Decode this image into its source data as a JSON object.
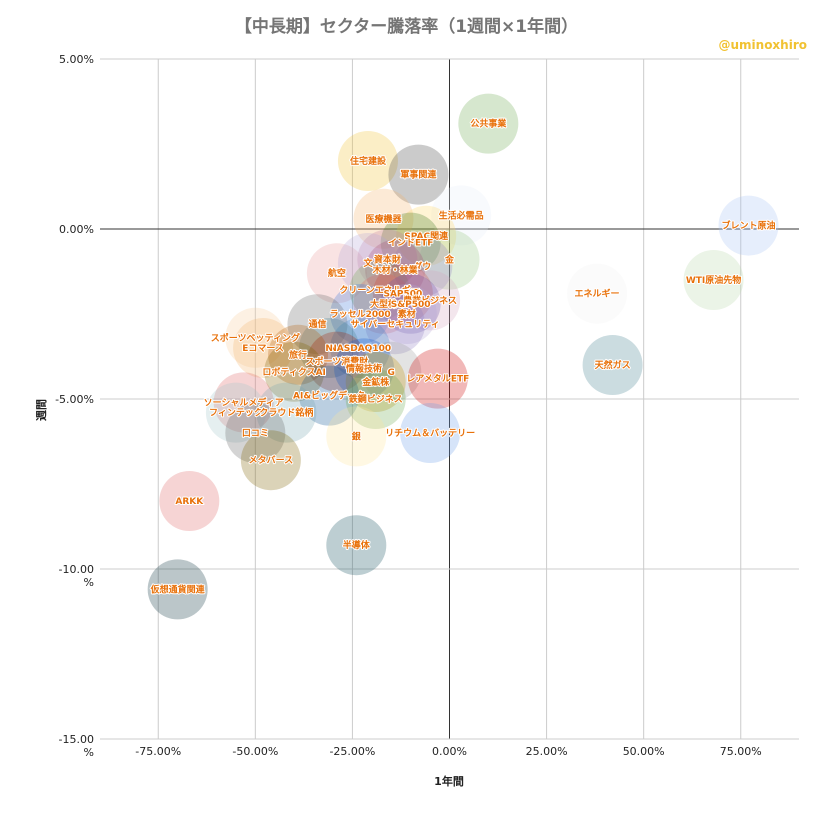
{
  "header": {
    "title": "【中長期】セクター騰落率（1週間×1年間）",
    "watermark": "@uminoxhiro"
  },
  "chart_data": {
    "type": "scatter",
    "title": "【中長期】セクター騰落率（1週間×1年間）",
    "xlabel": "1年間",
    "ylabel": "週間",
    "xlim": [
      -0.9,
      0.9
    ],
    "ylim": [
      -15,
      5
    ],
    "xticks": [
      -0.75,
      -0.5,
      -0.25,
      0,
      0.25,
      0.5,
      0.75
    ],
    "xtick_labels": [
      "-75.00%",
      "-50.00%",
      "-25.00%",
      "0.00%",
      "25.00%",
      "50.00%",
      "75.00%"
    ],
    "yticks": [
      5,
      0,
      -5,
      -10,
      -15
    ],
    "ytick_labels": [
      "5.00%",
      "0.00%",
      "-5.00%",
      "-10.00\n%",
      "-15.00\n%"
    ],
    "grid": true,
    "points": [
      {
        "label": "公共事業",
        "x": 0.1,
        "y": 3.1,
        "color": "#6aa84f"
      },
      {
        "label": "住宅建設",
        "x": -0.21,
        "y": 2.0,
        "color": "#f1c232"
      },
      {
        "label": "軍事関連",
        "x": -0.08,
        "y": 1.6,
        "color": "#434343"
      },
      {
        "label": "生活必需品",
        "x": 0.03,
        "y": 0.4,
        "color": "#e7eef8"
      },
      {
        "label": "医療機器",
        "x": -0.17,
        "y": 0.3,
        "color": "#f6b26b"
      },
      {
        "label": "SPAC関連",
        "x": -0.06,
        "y": -0.2,
        "color": "#ffd966"
      },
      {
        "label": "インドETF",
        "x": -0.1,
        "y": -0.4,
        "color": "#38761d"
      },
      {
        "label": "ブレント原油",
        "x": 0.77,
        "y": 0.1,
        "color": "#a4c2f4"
      },
      {
        "label": "金",
        "x": 0.0,
        "y": -0.9,
        "color": "#93c47d"
      },
      {
        "label": "航空",
        "x": -0.29,
        "y": -1.3,
        "color": "#ea9999"
      },
      {
        "label": "資本財",
        "x": -0.16,
        "y": -0.9,
        "color": "#c27ba0"
      },
      {
        "label": "ダウ",
        "x": -0.07,
        "y": -1.1,
        "color": "#8e7cc3"
      },
      {
        "label": "文",
        "x": -0.21,
        "y": -1.0,
        "color": "#b4a7d6"
      },
      {
        "label": "木材・林業",
        "x": -0.14,
        "y": -1.2,
        "color": "#a64d79"
      },
      {
        "label": "WTI原油先物",
        "x": 0.68,
        "y": -1.5,
        "color": "#b6d7a8"
      },
      {
        "label": "エネルギー",
        "x": 0.38,
        "y": -1.9,
        "color": "#efefef"
      },
      {
        "label": "クリーンエネルギー",
        "x": -0.18,
        "y": -1.8,
        "color": "#6aa84f"
      },
      {
        "label": "SAP500",
        "x": -0.12,
        "y": -1.9,
        "color": "#cc4125"
      },
      {
        "label": "農業ビジネス",
        "x": -0.05,
        "y": -2.1,
        "color": "#d5a6bd"
      },
      {
        "label": "大型株",
        "x": -0.17,
        "y": -2.2,
        "color": "#e06666"
      },
      {
        "label": "S&P500",
        "x": -0.1,
        "y": -2.2,
        "color": "#674ea7"
      },
      {
        "label": "ラッセル2000",
        "x": -0.23,
        "y": -2.5,
        "color": "#3c78d8"
      },
      {
        "label": "素材",
        "x": -0.11,
        "y": -2.5,
        "color": "#b4a7d6"
      },
      {
        "label": "通信",
        "x": -0.34,
        "y": -2.8,
        "color": "#666666"
      },
      {
        "label": "サイバーセキュリティ",
        "x": -0.14,
        "y": -2.8,
        "color": "#8e7cc3"
      },
      {
        "label": "スポーツベッティング",
        "x": -0.5,
        "y": -3.2,
        "color": "#f9cb9c"
      },
      {
        "label": "Eコマース",
        "x": -0.48,
        "y": -3.5,
        "color": "#f6b26b"
      },
      {
        "label": "NASDAQ100",
        "x": -0.23,
        "y": -3.5,
        "color": "#3d85c6"
      },
      {
        "label": "N",
        "x": -0.31,
        "y": -3.5,
        "color": "#45818e"
      },
      {
        "label": "旅行",
        "x": -0.39,
        "y": -3.7,
        "color": "#b45f06"
      },
      {
        "label": "スポーツ消費財",
        "x": -0.29,
        "y": -3.9,
        "color": "#a61c00"
      },
      {
        "label": "ロボティクスAI",
        "x": -0.4,
        "y": -4.2,
        "color": "#7f6000"
      },
      {
        "label": "情報技術",
        "x": -0.22,
        "y": -4.1,
        "color": "#1155cc"
      },
      {
        "label": "G",
        "x": -0.15,
        "y": -4.2,
        "color": "#999999"
      },
      {
        "label": "金鉱株",
        "x": -0.19,
        "y": -4.5,
        "color": "#bf9000"
      },
      {
        "label": "レアメタルETF",
        "x": -0.03,
        "y": -4.4,
        "color": "#cc0000"
      },
      {
        "label": "天然ガス",
        "x": 0.42,
        "y": -4.0,
        "color": "#45818e"
      },
      {
        "label": "AI&ビッグデータ",
        "x": -0.31,
        "y": -4.9,
        "color": "#0b5394"
      },
      {
        "label": "鉄鋼ビジネス",
        "x": -0.19,
        "y": -5.0,
        "color": "#6aa84f"
      },
      {
        "label": "ソーシャルメディア",
        "x": -0.53,
        "y": -5.1,
        "color": "#e06666"
      },
      {
        "label": "フィンテック",
        "x": -0.55,
        "y": -5.4,
        "color": "#a2c4c9"
      },
      {
        "label": "クラウド銘柄",
        "x": -0.42,
        "y": -5.4,
        "color": "#76a5af"
      },
      {
        "label": "リチウム＆バッテリー",
        "x": -0.05,
        "y": -6.0,
        "color": "#6d9eeb"
      },
      {
        "label": "銀",
        "x": -0.24,
        "y": -6.1,
        "color": "#ffe599"
      },
      {
        "label": "口コミ",
        "x": -0.5,
        "y": -6.0,
        "color": "#666666"
      },
      {
        "label": "メタバース",
        "x": -0.46,
        "y": -6.8,
        "color": "#7f6000"
      },
      {
        "label": "ARKK",
        "x": -0.67,
        "y": -8.0,
        "color": "#e06666"
      },
      {
        "label": "半導体",
        "x": -0.24,
        "y": -9.3,
        "color": "#134f5c"
      },
      {
        "label": "仮想通貨関連",
        "x": -0.7,
        "y": -10.6,
        "color": "#0c343d"
      }
    ]
  }
}
